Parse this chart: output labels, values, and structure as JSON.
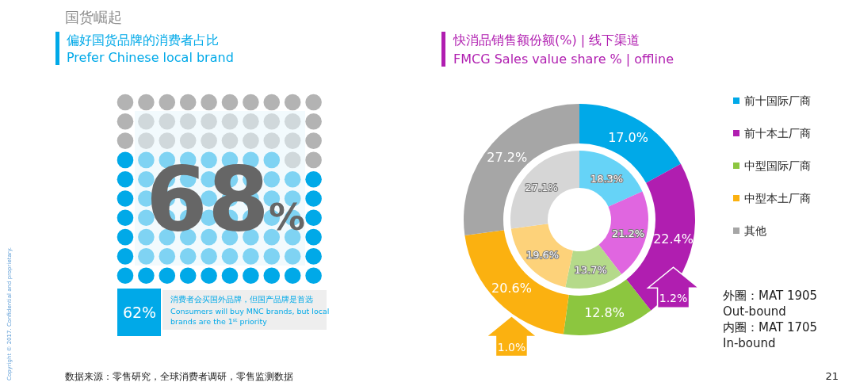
{
  "chart_data": [
    {
      "type": "other",
      "title": "偏好国货品牌的消费者占比",
      "subtitle": "Prefer Chinese local brand",
      "values": [
        68
      ],
      "value_labels": [
        "68%"
      ],
      "color": "#00a9e8",
      "annotations": [
        "国货崛起",
        "62%",
        "消费者会买国外品牌，但国产品牌是首选",
        "Consumers will buy MNC brands, but local brands are the 1$^{st}$ priority",
        "数据来源：零售研究，全球消费者调研，零售监测数据",
        "Copyright © 2017. Confidential and proprietary.",
        "21"
      ]
    },
    {
      "type": "donut",
      "title": "快消品销售额份额(%) | 线下渠道",
      "subtitle": "FMCG Sales value share % | offline",
      "categories": [
        "前十国际厂商",
        "前十本土厂商",
        "中型国际厂商",
        "中型本土厂商",
        "其他"
      ],
      "series": [
        {
          "values": [
            17.0,
            22.4,
            12.8,
            20.6,
            27.2
          ],
          "value_labels": [
            "17.0%",
            "22.4%",
            "12.8%",
            "20.6%",
            "27.2%"
          ],
          "colors": [
            "#00a9e8",
            "#b01eb0",
            "#8cc63f",
            "#fbb110",
            "#a6a6a6"
          ]
        },
        {
          "values": [
            18.3,
            21.2,
            13.7,
            19.6,
            27.1
          ],
          "value_labels": [
            "18.3%",
            "21.2%",
            "13.7%",
            "19.6%",
            "27.1%"
          ],
          "colors": [
            "#66d3f7",
            "#e066e0",
            "#b5da8a",
            "#fdd27a",
            "#d6d6d6"
          ]
        }
      ],
      "legend": "right",
      "annotations": [
        {
          "text": "1.2%",
          "x": "前十本土厂商"
        },
        {
          "text": "1.0%",
          "x": "中型本土厂商"
        },
        "外圈：MAT 1905",
        "Out-bound",
        "内圈：MAT 1705",
        "In-bound"
      ]
    }
  ]
}
